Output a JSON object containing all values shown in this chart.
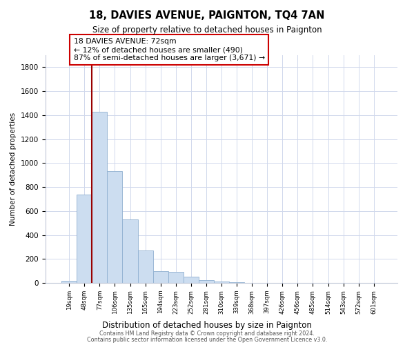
{
  "title": "18, DAVIES AVENUE, PAIGNTON, TQ4 7AN",
  "subtitle": "Size of property relative to detached houses in Paignton",
  "xlabel": "Distribution of detached houses by size in Paignton",
  "ylabel": "Number of detached properties",
  "bar_color": "#ccddf0",
  "bar_edge_color": "#90b0d0",
  "vline_color": "#990000",
  "vline_x": 2,
  "categories": [
    "19sqm",
    "48sqm",
    "77sqm",
    "106sqm",
    "135sqm",
    "165sqm",
    "194sqm",
    "223sqm",
    "252sqm",
    "281sqm",
    "310sqm",
    "339sqm",
    "368sqm",
    "397sqm",
    "426sqm",
    "456sqm",
    "485sqm",
    "514sqm",
    "543sqm",
    "572sqm",
    "601sqm"
  ],
  "values": [
    20,
    735,
    1425,
    935,
    530,
    270,
    100,
    90,
    50,
    25,
    10,
    5,
    2,
    1,
    0,
    1,
    0,
    0,
    0,
    0,
    0
  ],
  "ylim": [
    0,
    1900
  ],
  "yticks": [
    0,
    200,
    400,
    600,
    800,
    1000,
    1200,
    1400,
    1600,
    1800
  ],
  "annotation_title": "18 DAVIES AVENUE: 72sqm",
  "annotation_line1": "← 12% of detached houses are smaller (490)",
  "annotation_line2": "87% of semi-detached houses are larger (3,671) →",
  "footer_line1": "Contains HM Land Registry data © Crown copyright and database right 2024.",
  "footer_line2": "Contains public sector information licensed under the Open Government Licence v3.0.",
  "background_color": "#ffffff",
  "grid_color": "#d0d8ec"
}
